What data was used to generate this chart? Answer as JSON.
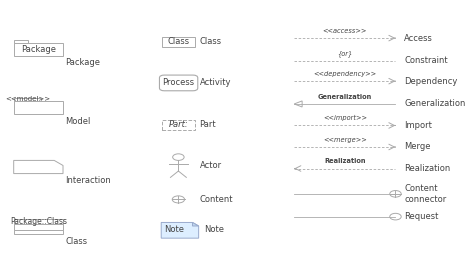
{
  "bg_color": "#ffffff",
  "line_color": "#aaaaaa",
  "text_color": "#444444",
  "font_size": 6.0,
  "rows_col3": [
    0.855,
    0.765,
    0.685,
    0.595,
    0.51,
    0.425,
    0.34,
    0.24,
    0.15
  ],
  "labels_right": [
    "Access",
    "Constraint",
    "Dependency",
    "Generalization",
    "Import",
    "Merge",
    "Realization",
    "Content\nconnector",
    "Request"
  ],
  "mid_labels": [
    "<<access>>",
    "{or}",
    "<<dependency>>",
    "Generalization",
    "<<import>>",
    "<<merge>>",
    "Realization",
    "",
    ""
  ],
  "arrow_styles": [
    "dashed_right",
    "dashed_none",
    "dashed_right",
    "solid_open_left",
    "dashed_right",
    "dashed_right",
    "dashed_left",
    "solid_circle_plus",
    "solid_circle"
  ],
  "c3x0": 0.655,
  "c3x1": 0.885
}
